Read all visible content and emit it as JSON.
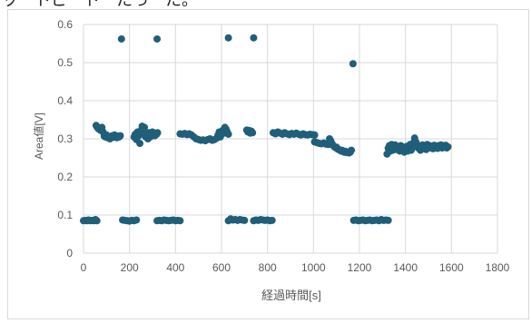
{
  "page": {
    "top_text": "ッ　トピ　ト　たっ　た。"
  },
  "chart_data": {
    "type": "scatter",
    "title": "",
    "xlabel": "経過時間[s]",
    "ylabel": "Area値[V]",
    "xlim": [
      0,
      1800
    ],
    "ylim": [
      0,
      0.6
    ],
    "x_ticks": [
      "0",
      "200",
      "400",
      "600",
      "800",
      "1000",
      "1200",
      "1400",
      "1600",
      "1800"
    ],
    "y_ticks": [
      "0",
      "0.1",
      "0.2",
      "0.3",
      "0.4",
      "0.5",
      "0.6"
    ],
    "grid": true,
    "legend": "none",
    "marker_color": "#1f5f7a",
    "series": [
      {
        "points": [
          [
            0,
            0.085
          ],
          [
            8,
            0.086
          ],
          [
            15,
            0.085
          ],
          [
            22,
            0.087
          ],
          [
            30,
            0.085
          ],
          [
            38,
            0.086
          ],
          [
            45,
            0.085
          ],
          [
            52,
            0.088
          ],
          [
            58,
            0.085
          ],
          [
            55,
            0.335
          ],
          [
            60,
            0.33
          ],
          [
            65,
            0.326
          ],
          [
            70,
            0.328
          ],
          [
            75,
            0.322
          ],
          [
            80,
            0.33
          ],
          [
            85,
            0.318
          ],
          [
            90,
            0.307
          ],
          [
            95,
            0.305
          ],
          [
            100,
            0.31
          ],
          [
            105,
            0.303
          ],
          [
            110,
            0.306
          ],
          [
            115,
            0.3
          ],
          [
            120,
            0.305
          ],
          [
            125,
            0.308
          ],
          [
            130,
            0.304
          ],
          [
            135,
            0.31
          ],
          [
            140,
            0.306
          ],
          [
            145,
            0.303
          ],
          [
            150,
            0.307
          ],
          [
            155,
            0.305
          ],
          [
            160,
            0.308
          ],
          [
            165,
            0.562
          ],
          [
            170,
            0.087
          ],
          [
            180,
            0.086
          ],
          [
            190,
            0.085
          ],
          [
            200,
            0.084
          ],
          [
            210,
            0.086
          ],
          [
            220,
            0.085
          ],
          [
            230,
            0.087
          ],
          [
            220,
            0.305
          ],
          [
            225,
            0.312
          ],
          [
            230,
            0.298
          ],
          [
            235,
            0.318
          ],
          [
            240,
            0.308
          ],
          [
            245,
            0.288
          ],
          [
            250,
            0.322
          ],
          [
            255,
            0.333
          ],
          [
            260,
            0.315
          ],
          [
            265,
            0.33
          ],
          [
            270,
            0.305
          ],
          [
            275,
            0.31
          ],
          [
            280,
            0.3
          ],
          [
            285,
            0.316
          ],
          [
            290,
            0.305
          ],
          [
            295,
            0.31
          ],
          [
            300,
            0.318
          ],
          [
            305,
            0.312
          ],
          [
            310,
            0.308
          ],
          [
            318,
            0.312
          ],
          [
            322,
            0.316
          ],
          [
            320,
            0.562
          ],
          [
            320,
            0.085
          ],
          [
            330,
            0.086
          ],
          [
            340,
            0.085
          ],
          [
            350,
            0.087
          ],
          [
            360,
            0.086
          ],
          [
            370,
            0.085
          ],
          [
            380,
            0.086
          ],
          [
            390,
            0.087
          ],
          [
            400,
            0.085
          ],
          [
            410,
            0.086
          ],
          [
            420,
            0.085
          ],
          [
            420,
            0.313
          ],
          [
            430,
            0.312
          ],
          [
            440,
            0.314
          ],
          [
            450,
            0.311
          ],
          [
            460,
            0.313
          ],
          [
            470,
            0.31
          ],
          [
            480,
            0.305
          ],
          [
            490,
            0.3
          ],
          [
            500,
            0.298
          ],
          [
            510,
            0.296
          ],
          [
            520,
            0.297
          ],
          [
            530,
            0.295
          ],
          [
            540,
            0.298
          ],
          [
            550,
            0.3
          ],
          [
            560,
            0.296
          ],
          [
            570,
            0.298
          ],
          [
            580,
            0.302
          ],
          [
            585,
            0.31
          ],
          [
            590,
            0.318
          ],
          [
            595,
            0.305
          ],
          [
            600,
            0.312
          ],
          [
            605,
            0.322
          ],
          [
            610,
            0.315
          ],
          [
            615,
            0.33
          ],
          [
            620,
            0.325
          ],
          [
            625,
            0.318
          ],
          [
            630,
            0.312
          ],
          [
            630,
            0.565
          ],
          [
            630,
            0.085
          ],
          [
            640,
            0.09
          ],
          [
            650,
            0.087
          ],
          [
            660,
            0.088
          ],
          [
            670,
            0.086
          ],
          [
            680,
            0.088
          ],
          [
            690,
            0.087
          ],
          [
            700,
            0.086
          ],
          [
            710,
            0.323
          ],
          [
            715,
            0.318
          ],
          [
            720,
            0.322
          ],
          [
            725,
            0.315
          ],
          [
            730,
            0.32
          ],
          [
            735,
            0.316
          ],
          [
            740,
            0.565
          ],
          [
            740,
            0.085
          ],
          [
            750,
            0.087
          ],
          [
            760,
            0.086
          ],
          [
            770,
            0.088
          ],
          [
            780,
            0.087
          ],
          [
            790,
            0.086
          ],
          [
            800,
            0.087
          ],
          [
            810,
            0.085
          ],
          [
            820,
            0.086
          ],
          [
            825,
            0.316
          ],
          [
            835,
            0.313
          ],
          [
            845,
            0.318
          ],
          [
            855,
            0.315
          ],
          [
            865,
            0.312
          ],
          [
            875,
            0.316
          ],
          [
            885,
            0.313
          ],
          [
            895,
            0.311
          ],
          [
            905,
            0.314
          ],
          [
            915,
            0.312
          ],
          [
            925,
            0.315
          ],
          [
            935,
            0.312
          ],
          [
            945,
            0.31
          ],
          [
            955,
            0.313
          ],
          [
            965,
            0.311
          ],
          [
            975,
            0.31
          ],
          [
            985,
            0.312
          ],
          [
            995,
            0.311
          ],
          [
            1005,
            0.31
          ],
          [
            1005,
            0.292
          ],
          [
            1015,
            0.29
          ],
          [
            1025,
            0.288
          ],
          [
            1035,
            0.287
          ],
          [
            1045,
            0.289
          ],
          [
            1055,
            0.286
          ],
          [
            1065,
            0.285
          ],
          [
            1070,
            0.3
          ],
          [
            1075,
            0.295
          ],
          [
            1080,
            0.288
          ],
          [
            1085,
            0.283
          ],
          [
            1090,
            0.28
          ],
          [
            1095,
            0.277
          ],
          [
            1100,
            0.278
          ],
          [
            1105,
            0.273
          ],
          [
            1110,
            0.272
          ],
          [
            1115,
            0.27
          ],
          [
            1120,
            0.268
          ],
          [
            1125,
            0.27
          ],
          [
            1130,
            0.266
          ],
          [
            1135,
            0.265
          ],
          [
            1140,
            0.267
          ],
          [
            1145,
            0.264
          ],
          [
            1150,
            0.265
          ],
          [
            1155,
            0.263
          ],
          [
            1160,
            0.265
          ],
          [
            1165,
            0.27
          ],
          [
            1172,
            0.497
          ],
          [
            1175,
            0.086
          ],
          [
            1185,
            0.087
          ],
          [
            1195,
            0.085
          ],
          [
            1205,
            0.086
          ],
          [
            1215,
            0.087
          ],
          [
            1225,
            0.085
          ],
          [
            1235,
            0.086
          ],
          [
            1245,
            0.087
          ],
          [
            1255,
            0.085
          ],
          [
            1265,
            0.086
          ],
          [
            1275,
            0.087
          ],
          [
            1285,
            0.085
          ],
          [
            1295,
            0.088
          ],
          [
            1305,
            0.086
          ],
          [
            1315,
            0.087
          ],
          [
            1325,
            0.086
          ],
          [
            1320,
            0.26
          ],
          [
            1325,
            0.275
          ],
          [
            1330,
            0.282
          ],
          [
            1335,
            0.268
          ],
          [
            1340,
            0.285
          ],
          [
            1345,
            0.27
          ],
          [
            1350,
            0.278
          ],
          [
            1355,
            0.284
          ],
          [
            1360,
            0.272
          ],
          [
            1365,
            0.28
          ],
          [
            1370,
            0.275
          ],
          [
            1375,
            0.268
          ],
          [
            1380,
            0.282
          ],
          [
            1385,
            0.27
          ],
          [
            1390,
            0.278
          ],
          [
            1395,
            0.265
          ],
          [
            1400,
            0.275
          ],
          [
            1405,
            0.28
          ],
          [
            1410,
            0.268
          ],
          [
            1415,
            0.272
          ],
          [
            1420,
            0.285
          ],
          [
            1425,
            0.27
          ],
          [
            1430,
            0.278
          ],
          [
            1435,
            0.29
          ],
          [
            1440,
            0.302
          ],
          [
            1445,
            0.292
          ],
          [
            1450,
            0.285
          ],
          [
            1455,
            0.276
          ],
          [
            1460,
            0.282
          ],
          [
            1465,
            0.27
          ],
          [
            1470,
            0.278
          ],
          [
            1475,
            0.284
          ],
          [
            1480,
            0.275
          ],
          [
            1485,
            0.28
          ],
          [
            1490,
            0.272
          ],
          [
            1495,
            0.285
          ],
          [
            1500,
            0.278
          ],
          [
            1505,
            0.282
          ],
          [
            1510,
            0.276
          ],
          [
            1515,
            0.28
          ],
          [
            1520,
            0.274
          ],
          [
            1525,
            0.283
          ],
          [
            1530,
            0.277
          ],
          [
            1535,
            0.281
          ],
          [
            1540,
            0.275
          ],
          [
            1545,
            0.282
          ],
          [
            1550,
            0.277
          ],
          [
            1555,
            0.284
          ],
          [
            1560,
            0.276
          ],
          [
            1565,
            0.281
          ],
          [
            1570,
            0.278
          ],
          [
            1575,
            0.283
          ],
          [
            1580,
            0.276
          ],
          [
            1585,
            0.279
          ]
        ]
      }
    ]
  }
}
